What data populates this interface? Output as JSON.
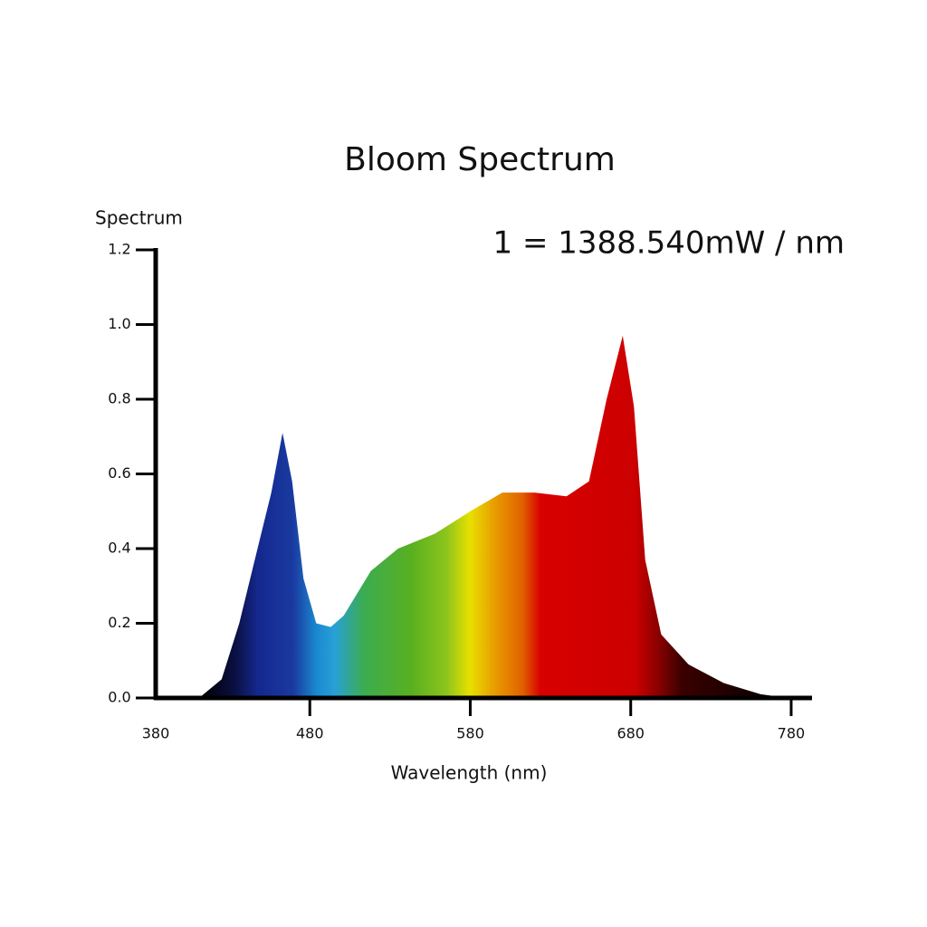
{
  "chart_data": {
    "type": "area",
    "title": "Bloom Spectrum",
    "y_label": "Spectrum",
    "x_label": "Wavelength (nm)",
    "annotation": "1 = 1388.540mW / nm",
    "x": [
      395,
      411,
      425,
      436,
      448,
      456,
      463,
      469,
      476,
      484,
      493,
      501,
      518,
      535,
      558,
      580,
      600,
      620,
      640,
      654,
      665,
      675,
      682,
      689,
      699,
      716,
      738,
      761,
      778
    ],
    "values": [
      0,
      0,
      0.05,
      0.2,
      0.41,
      0.55,
      0.71,
      0.58,
      0.32,
      0.2,
      0.19,
      0.22,
      0.34,
      0.4,
      0.44,
      0.5,
      0.55,
      0.55,
      0.54,
      0.58,
      0.8,
      0.97,
      0.78,
      0.37,
      0.17,
      0.09,
      0.04,
      0.01,
      0
    ],
    "xlim": [
      380,
      793
    ],
    "ylim": [
      0,
      1.2
    ],
    "xticks": [
      380,
      480,
      580,
      680,
      780
    ],
    "yticks": [
      {
        "value": 0,
        "label": "0.0"
      },
      0.2,
      0.4,
      0.6,
      0.8,
      {
        "value": 1,
        "label": "1.0"
      },
      1.2
    ]
  }
}
